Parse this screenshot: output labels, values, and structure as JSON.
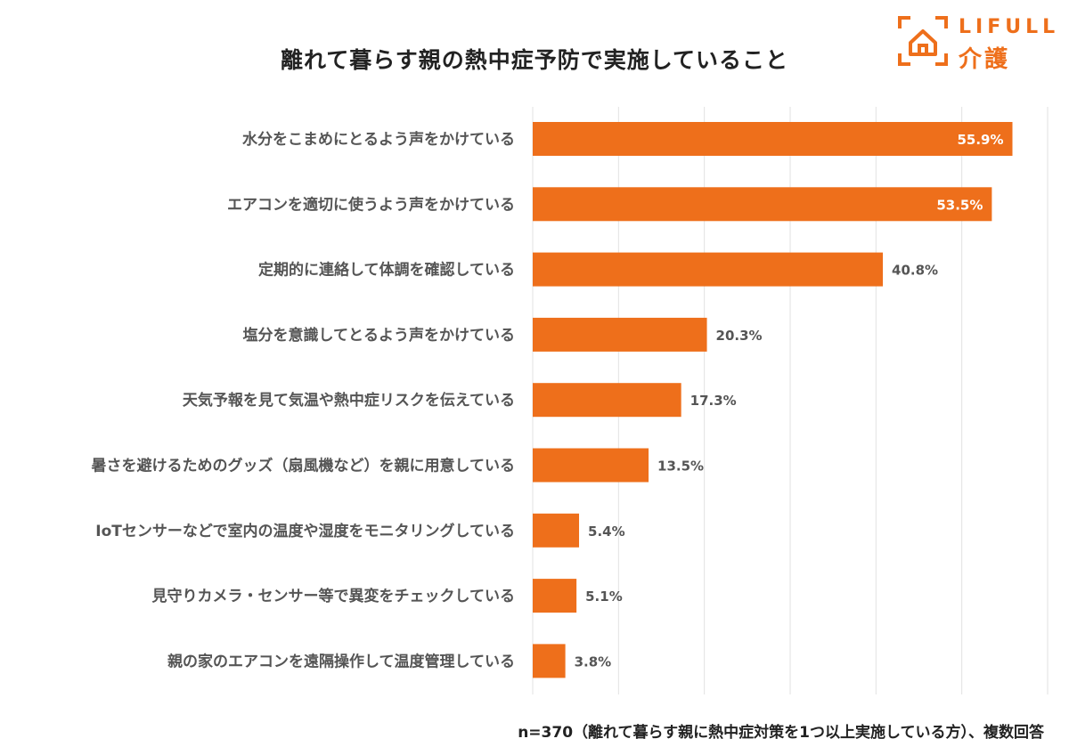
{
  "header": {
    "title": "離れて暮らす親の熱中症予防で実施していること"
  },
  "logo": {
    "brand": "LIFULL",
    "sub": "介護",
    "icon": "house-bracket-icon",
    "color": "#EE6F1B"
  },
  "footnote": "n=370（離れて暮らす親に熱中症対策を1つ以上実施している方）、複数回答",
  "chart_data": {
    "type": "bar",
    "orientation": "horizontal",
    "title": "離れて暮らす親の熱中症予防で実施していること",
    "xlabel": "",
    "ylabel": "",
    "categories": [
      "水分をこまめにとるよう声をかけている",
      "エアコンを適切に使うよう声をかけている",
      "定期的に連絡して体調を確認している",
      "塩分を意識してとるよう声をかけている",
      "天気予報を見て気温や熱中症リスクを伝えている",
      "暑さを避けるためのグッズ（扇風機など）を親に用意している",
      "IoTセンサーなどで室内の温度や湿度をモニタリングしている",
      "見守りカメラ・センサー等で異変をチェックしている",
      "親の家のエアコンを遠隔操作して温度管理している"
    ],
    "values": [
      55.9,
      53.5,
      40.8,
      20.3,
      17.3,
      13.5,
      5.4,
      5.1,
      3.8
    ],
    "value_labels": [
      "55.9%",
      "53.5%",
      "40.8%",
      "20.3%",
      "17.3%",
      "13.5%",
      "5.4%",
      "5.1%",
      "3.8%"
    ],
    "xlim": [
      0,
      60
    ],
    "grid": true,
    "legend": "none",
    "bar_color": "#EE6F1B",
    "grid_color": "#E2E2E2",
    "inside_label_color": "#FFFFFF",
    "outside_label_color": "#555555"
  }
}
